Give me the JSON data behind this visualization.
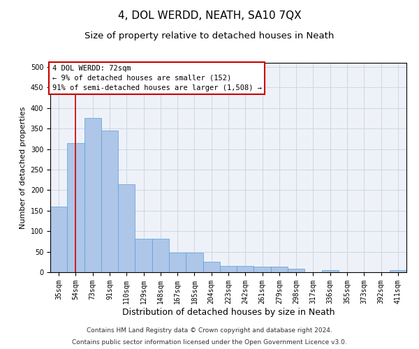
{
  "title": "4, DOL WERDD, NEATH, SA10 7QX",
  "subtitle": "Size of property relative to detached houses in Neath",
  "xlabel": "Distribution of detached houses by size in Neath",
  "ylabel": "Number of detached properties",
  "categories": [
    "35sqm",
    "54sqm",
    "73sqm",
    "91sqm",
    "110sqm",
    "129sqm",
    "148sqm",
    "167sqm",
    "185sqm",
    "204sqm",
    "223sqm",
    "242sqm",
    "261sqm",
    "279sqm",
    "298sqm",
    "317sqm",
    "336sqm",
    "355sqm",
    "373sqm",
    "392sqm",
    "411sqm"
  ],
  "values": [
    160,
    315,
    375,
    345,
    215,
    82,
    82,
    48,
    48,
    25,
    15,
    15,
    13,
    13,
    8,
    0,
    5,
    0,
    0,
    0,
    5
  ],
  "bar_color": "#aec6e8",
  "bar_edge_color": "#5a9fd4",
  "grid_color": "#d0d8e8",
  "background_color": "#eef2f8",
  "annotation_box_text": "4 DOL WERDD: 72sqm\n← 9% of detached houses are smaller (152)\n91% of semi-detached houses are larger (1,508) →",
  "annotation_box_color": "#cc0000",
  "vline_x_index": 1,
  "vline_color": "#cc0000",
  "ylim": [
    0,
    510
  ],
  "yticks": [
    0,
    50,
    100,
    150,
    200,
    250,
    300,
    350,
    400,
    450,
    500
  ],
  "footer1": "Contains HM Land Registry data © Crown copyright and database right 2024.",
  "footer2": "Contains public sector information licensed under the Open Government Licence v3.0.",
  "title_fontsize": 11,
  "subtitle_fontsize": 9.5,
  "xlabel_fontsize": 9,
  "ylabel_fontsize": 8,
  "tick_fontsize": 7,
  "annotation_fontsize": 7.5,
  "footer_fontsize": 6.5
}
